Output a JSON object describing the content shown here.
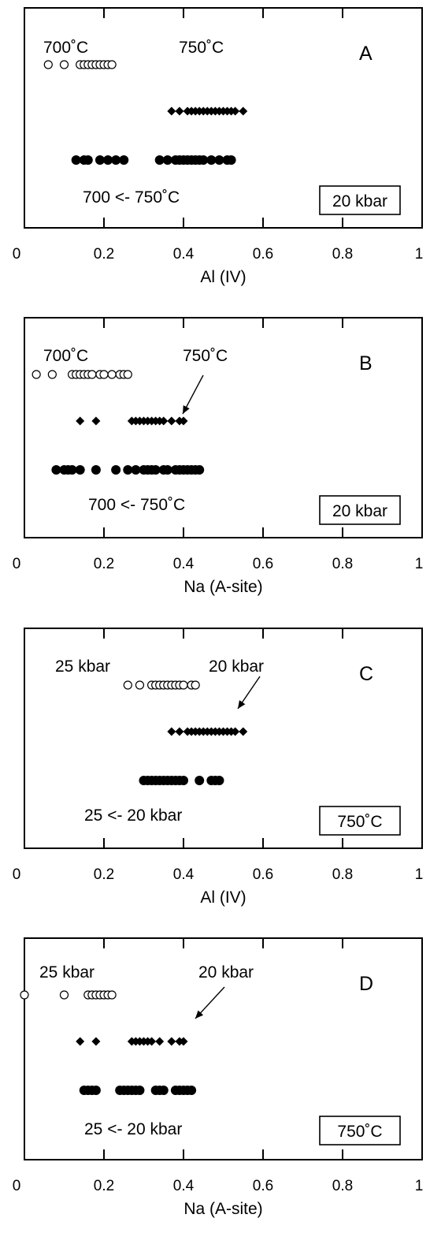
{
  "chart_data": [
    {
      "type": "scatter",
      "panel": "A",
      "xlabel": "Al (IV)",
      "xlim": [
        0,
        1
      ],
      "xticks": [
        "0",
        "0.2",
        "0.4",
        "0.6",
        "0.8",
        "1"
      ],
      "boxed_label": "20 kbar",
      "annotations": [
        "700˚C",
        "750˚C",
        "700 <- 750˚C"
      ],
      "series": [
        {
          "marker": "open-circle",
          "x": [
            0.06,
            0.1,
            0.14,
            0.15,
            0.16,
            0.17,
            0.18,
            0.19,
            0.2,
            0.21,
            0.22
          ]
        },
        {
          "marker": "filled-diamond",
          "x": [
            0.37,
            0.39,
            0.41,
            0.42,
            0.43,
            0.44,
            0.45,
            0.46,
            0.47,
            0.48,
            0.49,
            0.5,
            0.51,
            0.52,
            0.53,
            0.55
          ]
        },
        {
          "marker": "filled-circle",
          "x": [
            0.13,
            0.15,
            0.16,
            0.19,
            0.21,
            0.23,
            0.25,
            0.34,
            0.36,
            0.38,
            0.39,
            0.4,
            0.41,
            0.42,
            0.43,
            0.44,
            0.45,
            0.47,
            0.49,
            0.51,
            0.52
          ]
        }
      ]
    },
    {
      "type": "scatter",
      "panel": "B",
      "xlabel": "Na (A-site)",
      "xlim": [
        0,
        1
      ],
      "xticks": [
        "0",
        "0.2",
        "0.4",
        "0.6",
        "0.8",
        "1"
      ],
      "boxed_label": "20 kbar",
      "annotations": [
        "700˚C",
        "750˚C",
        "700 <- 750˚C"
      ],
      "series": [
        {
          "marker": "open-circle",
          "x": [
            0.03,
            0.07,
            0.12,
            0.13,
            0.14,
            0.15,
            0.16,
            0.17,
            0.19,
            0.2,
            0.22,
            0.24,
            0.25,
            0.26
          ]
        },
        {
          "marker": "filled-diamond",
          "x": [
            0.14,
            0.18,
            0.27,
            0.28,
            0.29,
            0.3,
            0.31,
            0.32,
            0.33,
            0.34,
            0.35,
            0.37,
            0.39,
            0.4
          ]
        },
        {
          "marker": "filled-circle",
          "x": [
            0.08,
            0.1,
            0.11,
            0.12,
            0.14,
            0.18,
            0.23,
            0.26,
            0.28,
            0.3,
            0.31,
            0.32,
            0.33,
            0.35,
            0.36,
            0.38,
            0.39,
            0.4,
            0.41,
            0.42,
            0.43,
            0.44
          ]
        }
      ]
    },
    {
      "type": "scatter",
      "panel": "C",
      "xlabel": "Al (IV)",
      "xlim": [
        0,
        1
      ],
      "xticks": [
        "0",
        "0.2",
        "0.4",
        "0.6",
        "0.8",
        "1"
      ],
      "boxed_label": "750˚C",
      "annotations": [
        "25 kbar",
        "20 kbar",
        "25 <- 20 kbar"
      ],
      "series": [
        {
          "marker": "open-circle",
          "x": [
            0.26,
            0.29,
            0.32,
            0.33,
            0.34,
            0.35,
            0.36,
            0.37,
            0.38,
            0.39,
            0.4,
            0.42,
            0.43
          ]
        },
        {
          "marker": "filled-diamond",
          "x": [
            0.37,
            0.39,
            0.41,
            0.42,
            0.43,
            0.44,
            0.45,
            0.46,
            0.47,
            0.48,
            0.49,
            0.5,
            0.51,
            0.52,
            0.53,
            0.55
          ]
        },
        {
          "marker": "filled-circle",
          "x": [
            0.3,
            0.31,
            0.32,
            0.33,
            0.34,
            0.35,
            0.36,
            0.37,
            0.38,
            0.39,
            0.4,
            0.44,
            0.47,
            0.48,
            0.49
          ]
        }
      ]
    },
    {
      "type": "scatter",
      "panel": "D",
      "xlabel": "Na (A-site)",
      "xlim": [
        0,
        1
      ],
      "xticks": [
        "0",
        "0.2",
        "0.4",
        "0.6",
        "0.8",
        "1"
      ],
      "boxed_label": "750˚C",
      "annotations": [
        "25 kbar",
        "20 kbar",
        "25 <- 20 kbar"
      ],
      "series": [
        {
          "marker": "open-circle",
          "x": [
            0.0,
            0.1,
            0.16,
            0.17,
            0.18,
            0.19,
            0.2,
            0.21,
            0.22
          ]
        },
        {
          "marker": "filled-diamond",
          "x": [
            0.14,
            0.18,
            0.27,
            0.28,
            0.29,
            0.3,
            0.31,
            0.32,
            0.34,
            0.37,
            0.39,
            0.4
          ]
        },
        {
          "marker": "filled-circle",
          "x": [
            0.15,
            0.16,
            0.17,
            0.18,
            0.24,
            0.25,
            0.26,
            0.27,
            0.28,
            0.29,
            0.33,
            0.34,
            0.35,
            0.38,
            0.39,
            0.4,
            0.41,
            0.42
          ]
        }
      ]
    }
  ]
}
